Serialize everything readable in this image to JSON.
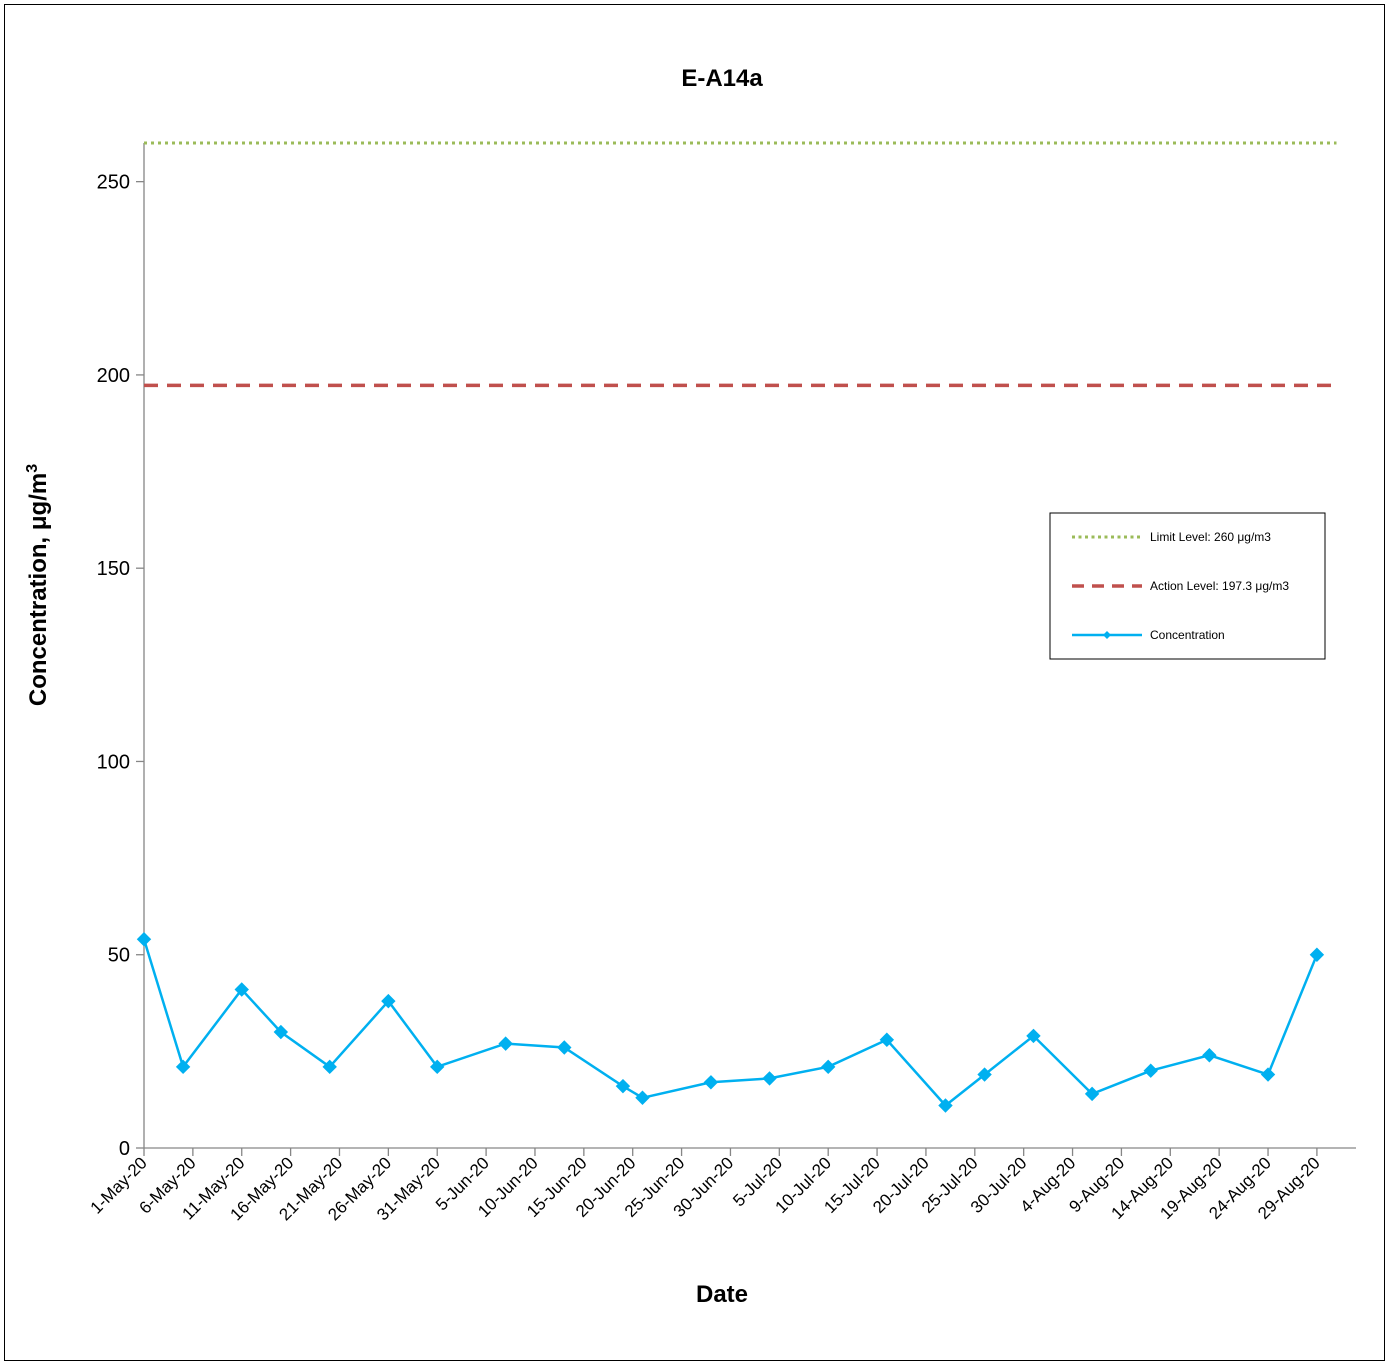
{
  "chart_data": {
    "type": "line",
    "title": "E-A14a",
    "xlabel": "Date",
    "ylabel": "Concentration, μg/m",
    "ylabel_superscript": "3",
    "ylim": [
      0,
      260
    ],
    "yticks": [
      0,
      50,
      100,
      150,
      200,
      250
    ],
    "x_ticks": [
      "1-May-20",
      "6-May-20",
      "11-May-20",
      "16-May-20",
      "21-May-20",
      "26-May-20",
      "31-May-20",
      "5-Jun-20",
      "10-Jun-20",
      "15-Jun-20",
      "20-Jun-20",
      "25-Jun-20",
      "30-Jun-20",
      "5-Jul-20",
      "10-Jul-20",
      "15-Jul-20",
      "20-Jul-20",
      "25-Jul-20",
      "30-Jul-20",
      "4-Aug-20",
      "9-Aug-20",
      "14-Aug-20",
      "19-Aug-20",
      "24-Aug-20",
      "29-Aug-20"
    ],
    "xlim": [
      "1-May-20",
      "2-Sep-20"
    ],
    "grid": false,
    "legend_position": "right",
    "series": [
      {
        "name": "Limit Level: 260 μg/m3",
        "style": "dotted",
        "color": "#9bbb59",
        "x": [
          "1-May-20",
          "31-Aug-20"
        ],
        "y": [
          260,
          260
        ]
      },
      {
        "name": "Action Level: 197.3 μg/m3",
        "style": "dashed",
        "color": "#c0504d",
        "x": [
          "1-May-20",
          "31-Aug-20"
        ],
        "y": [
          197.3,
          197.3
        ]
      },
      {
        "name": "Concentration",
        "style": "line-diamond",
        "color": "#00b0f0",
        "x": [
          "1-May-20",
          "5-May-20",
          "11-May-20",
          "15-May-20",
          "20-May-20",
          "26-May-20",
          "31-May-20",
          "7-Jun-20",
          "13-Jun-20",
          "19-Jun-20",
          "21-Jun-20",
          "28-Jun-20",
          "4-Jul-20",
          "10-Jul-20",
          "16-Jul-20",
          "22-Jul-20",
          "26-Jul-20",
          "31-Jul-20",
          "6-Aug-20",
          "12-Aug-20",
          "18-Aug-20",
          "24-Aug-20",
          "29-Aug-20"
        ],
        "y": [
          54,
          21,
          41,
          30,
          21,
          38,
          21,
          27,
          26,
          16,
          13,
          17,
          18,
          21,
          28,
          11,
          19,
          29,
          14,
          20,
          24,
          19,
          50
        ]
      }
    ]
  }
}
